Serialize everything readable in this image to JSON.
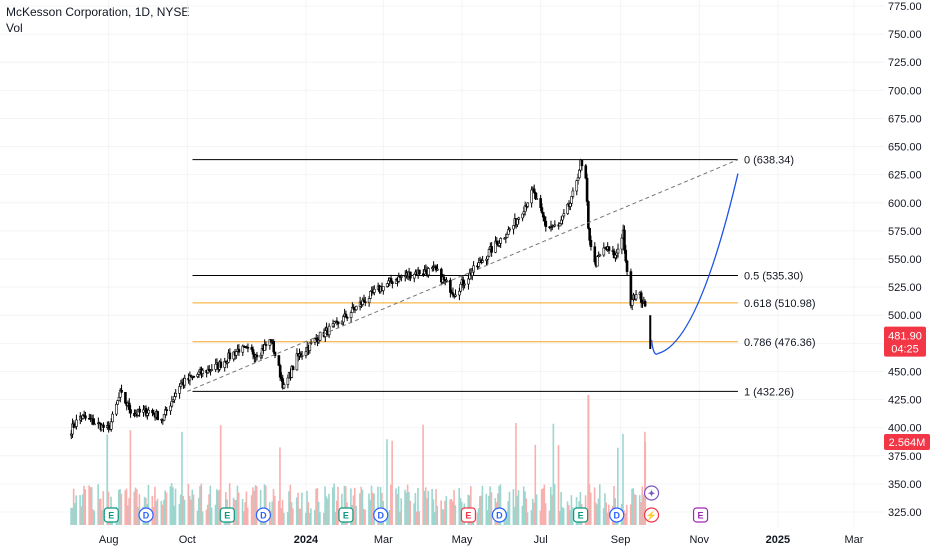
{
  "header": {
    "title": "McKesson Corporation, 1D, NYSE",
    "volume_label": "Vol"
  },
  "chart_data": {
    "type": "candlestick",
    "y_axis": {
      "range": [
        312,
        780
      ],
      "ticks": [
        775,
        750,
        725,
        700,
        675,
        650,
        625,
        600,
        575,
        550,
        525,
        500,
        475,
        450,
        425,
        400,
        375,
        350,
        325
      ],
      "tick_labels": [
        "775.00",
        "750.00",
        "725.00",
        "700.00",
        "675.00",
        "650.00",
        "625.00",
        "600.00",
        "575.00",
        "550.00",
        "525.00",
        "500.00",
        "475.00",
        "450.00",
        "425.00",
        "400.00",
        "375.00",
        "350.00",
        "325.00"
      ]
    },
    "x_axis": {
      "labels": [
        "Aug",
        "Oct",
        "2024",
        "Mar",
        "May",
        "Jul",
        "Sep",
        "Nov",
        "2025",
        "Mar"
      ],
      "bold": [
        false,
        false,
        true,
        false,
        false,
        false,
        false,
        false,
        true,
        false
      ]
    },
    "price_path": [
      [
        "2023-07-01",
        395
      ],
      [
        "2023-07-10",
        410
      ],
      [
        "2023-07-20",
        405
      ],
      [
        "2023-08-01",
        398
      ],
      [
        "2023-08-10",
        430
      ],
      [
        "2023-08-20",
        412
      ],
      [
        "2023-09-01",
        415
      ],
      [
        "2023-09-12",
        408
      ],
      [
        "2023-09-25",
        438
      ],
      [
        "2023-10-10",
        448
      ],
      [
        "2023-10-25",
        455
      ],
      [
        "2023-11-10",
        470
      ],
      [
        "2023-11-25",
        466
      ],
      [
        "2023-12-05",
        478
      ],
      [
        "2023-12-15",
        435
      ],
      [
        "2023-12-25",
        462
      ],
      [
        "2024-01-10",
        480
      ],
      [
        "2024-01-25",
        492
      ],
      [
        "2024-02-10",
        508
      ],
      [
        "2024-02-25",
        522
      ],
      [
        "2024-03-10",
        532
      ],
      [
        "2024-03-25",
        538
      ],
      [
        "2024-04-10",
        540
      ],
      [
        "2024-04-25",
        520
      ],
      [
        "2024-05-10",
        540
      ],
      [
        "2024-05-25",
        560
      ],
      [
        "2024-06-10",
        580
      ],
      [
        "2024-06-25",
        610
      ],
      [
        "2024-07-05",
        580
      ],
      [
        "2024-07-15",
        578
      ],
      [
        "2024-07-25",
        602
      ],
      [
        "2024-08-01",
        635
      ],
      [
        "2024-08-05",
        620
      ],
      [
        "2024-08-07",
        575
      ],
      [
        "2024-08-12",
        545
      ],
      [
        "2024-08-20",
        560
      ],
      [
        "2024-08-28",
        552
      ],
      [
        "2024-09-03",
        575
      ],
      [
        "2024-09-05",
        545
      ],
      [
        "2024-09-09",
        510
      ],
      [
        "2024-09-13",
        520
      ],
      [
        "2024-09-20",
        512
      ]
    ],
    "fib_levels": [
      {
        "ratio": "0",
        "value": 638.34,
        "label": "0 (638.34)",
        "color": "#000000"
      },
      {
        "ratio": "0.5",
        "value": 535.3,
        "label": "0.5 (535.30)",
        "color": "#000000"
      },
      {
        "ratio": "0.618",
        "value": 510.98,
        "label": "0.618 (510.98)",
        "color": "#f5a623"
      },
      {
        "ratio": "0.786",
        "value": 476.36,
        "label": "0.786 (476.36)",
        "color": "#f5a623"
      },
      {
        "ratio": "1",
        "value": 432.26,
        "label": "1 (432.26)",
        "color": "#000000"
      }
    ],
    "current_price": {
      "value": 481.9,
      "label": "481.90",
      "countdown": "04:25",
      "color": "#f23645"
    },
    "volume_badge": {
      "label": "2.564M",
      "color": "#f23645"
    },
    "trendline": {
      "from": [
        "2023-10-01",
        432.26
      ],
      "to": [
        "2024-12-01",
        638.34
      ]
    },
    "projection_curve": {
      "from": [
        "2024-09-25",
        478
      ],
      "low": [
        "2024-09-30",
        466
      ],
      "to": [
        "2024-12-01",
        626
      ],
      "color": "#1e53e5"
    },
    "event_markers": [
      {
        "kind": "E",
        "color": "#089981"
      },
      {
        "kind": "D",
        "color": "#2962ff"
      },
      {
        "kind": "E",
        "color": "#089981"
      },
      {
        "kind": "D",
        "color": "#2962ff"
      },
      {
        "kind": "E",
        "color": "#089981"
      },
      {
        "kind": "D",
        "color": "#2962ff"
      },
      {
        "kind": "E",
        "color": "#f23645"
      },
      {
        "kind": "D",
        "color": "#2962ff"
      },
      {
        "kind": "E",
        "color": "#089981"
      },
      {
        "kind": "D",
        "color": "#2962ff"
      },
      {
        "kind": "split",
        "color": "#f23645"
      },
      {
        "kind": "flash",
        "color": "#7e57c2"
      },
      {
        "kind": "E",
        "color": "#9c27b0"
      }
    ],
    "colors": {
      "up": "#000000",
      "down": "#000000",
      "vol_up": "#26a69a",
      "vol_down": "#ef5350",
      "grid": "#f0f3fa",
      "text": "#131722"
    }
  }
}
